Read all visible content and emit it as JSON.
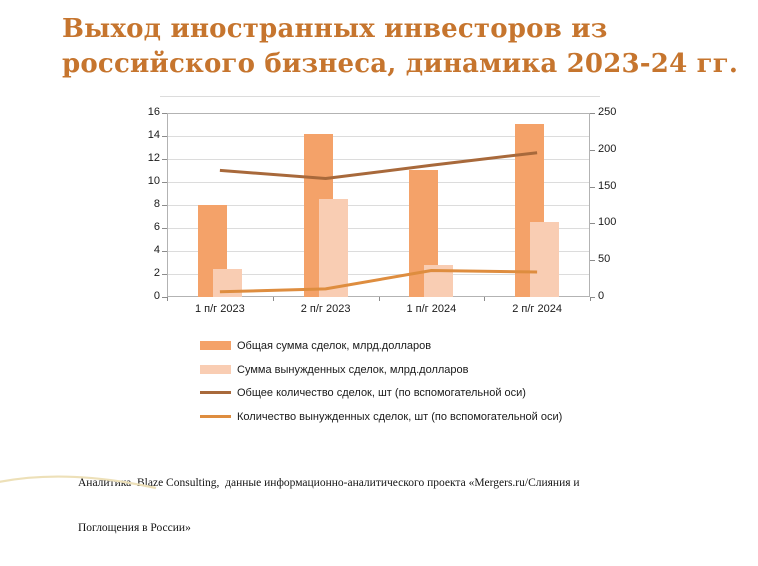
{
  "slide": {
    "title_lines": [
      "Выход иностранных инвесторов из",
      "российского бизнеса, динамика 2023-24 гг."
    ],
    "footer_lines": [
      "Аналитика  Blaze Consulting,  данные информационно-аналитического проекта «Mergers.ru/Слияния и",
      "Поглощения в России»"
    ]
  },
  "colors": {
    "title": "#C6752E",
    "bar_total": "#F4A269",
    "bar_forced": "#F9CDB3",
    "line_total": "#A8693B",
    "line_forced": "#DE8D3F",
    "gridline": "#DCDCDC",
    "plot_border": "#B3B3B3",
    "axis_text": "#1A1A1A",
    "swoosh": "#EDE0B8"
  },
  "chart_data": {
    "type": "combo bar+line",
    "title": "",
    "categories": [
      "1 п/г 2023",
      "2 п/г 2023",
      "1 п/г 2024",
      "2 п/г 2024"
    ],
    "series": [
      {
        "name": "Общая сумма сделок, млрд.долларов",
        "type": "bar",
        "axis": "left",
        "color": "#F4A269",
        "values": [
          8,
          14.2,
          11,
          15
        ]
      },
      {
        "name": "Сумма вынужденных сделок, млрд.долларов",
        "type": "bar",
        "axis": "left",
        "color": "#F9CDB3",
        "values": [
          2.4,
          8.5,
          2.8,
          6.5
        ]
      },
      {
        "name": "Общее количество сделок, шт (по вспомогательной оси)",
        "type": "line",
        "axis": "right",
        "color": "#A8693B",
        "values": [
          172,
          161,
          179,
          196
        ]
      },
      {
        "name": "Количество вынужденных сделок, шт (по вспомогательной оси)",
        "type": "line",
        "axis": "right",
        "color": "#DE8D3F",
        "values": [
          7,
          11,
          36,
          34
        ]
      }
    ],
    "left_axis": {
      "min": 0,
      "max": 16,
      "step": 2,
      "tick_labels": [
        "0",
        "2",
        "4",
        "6",
        "8",
        "10",
        "12",
        "14",
        "16"
      ]
    },
    "right_axis": {
      "min": 0,
      "max": 250,
      "step": 50,
      "tick_labels": [
        "0",
        "50",
        "100",
        "150",
        "200",
        "250"
      ]
    },
    "grid": true,
    "legend_position": "bottom"
  }
}
